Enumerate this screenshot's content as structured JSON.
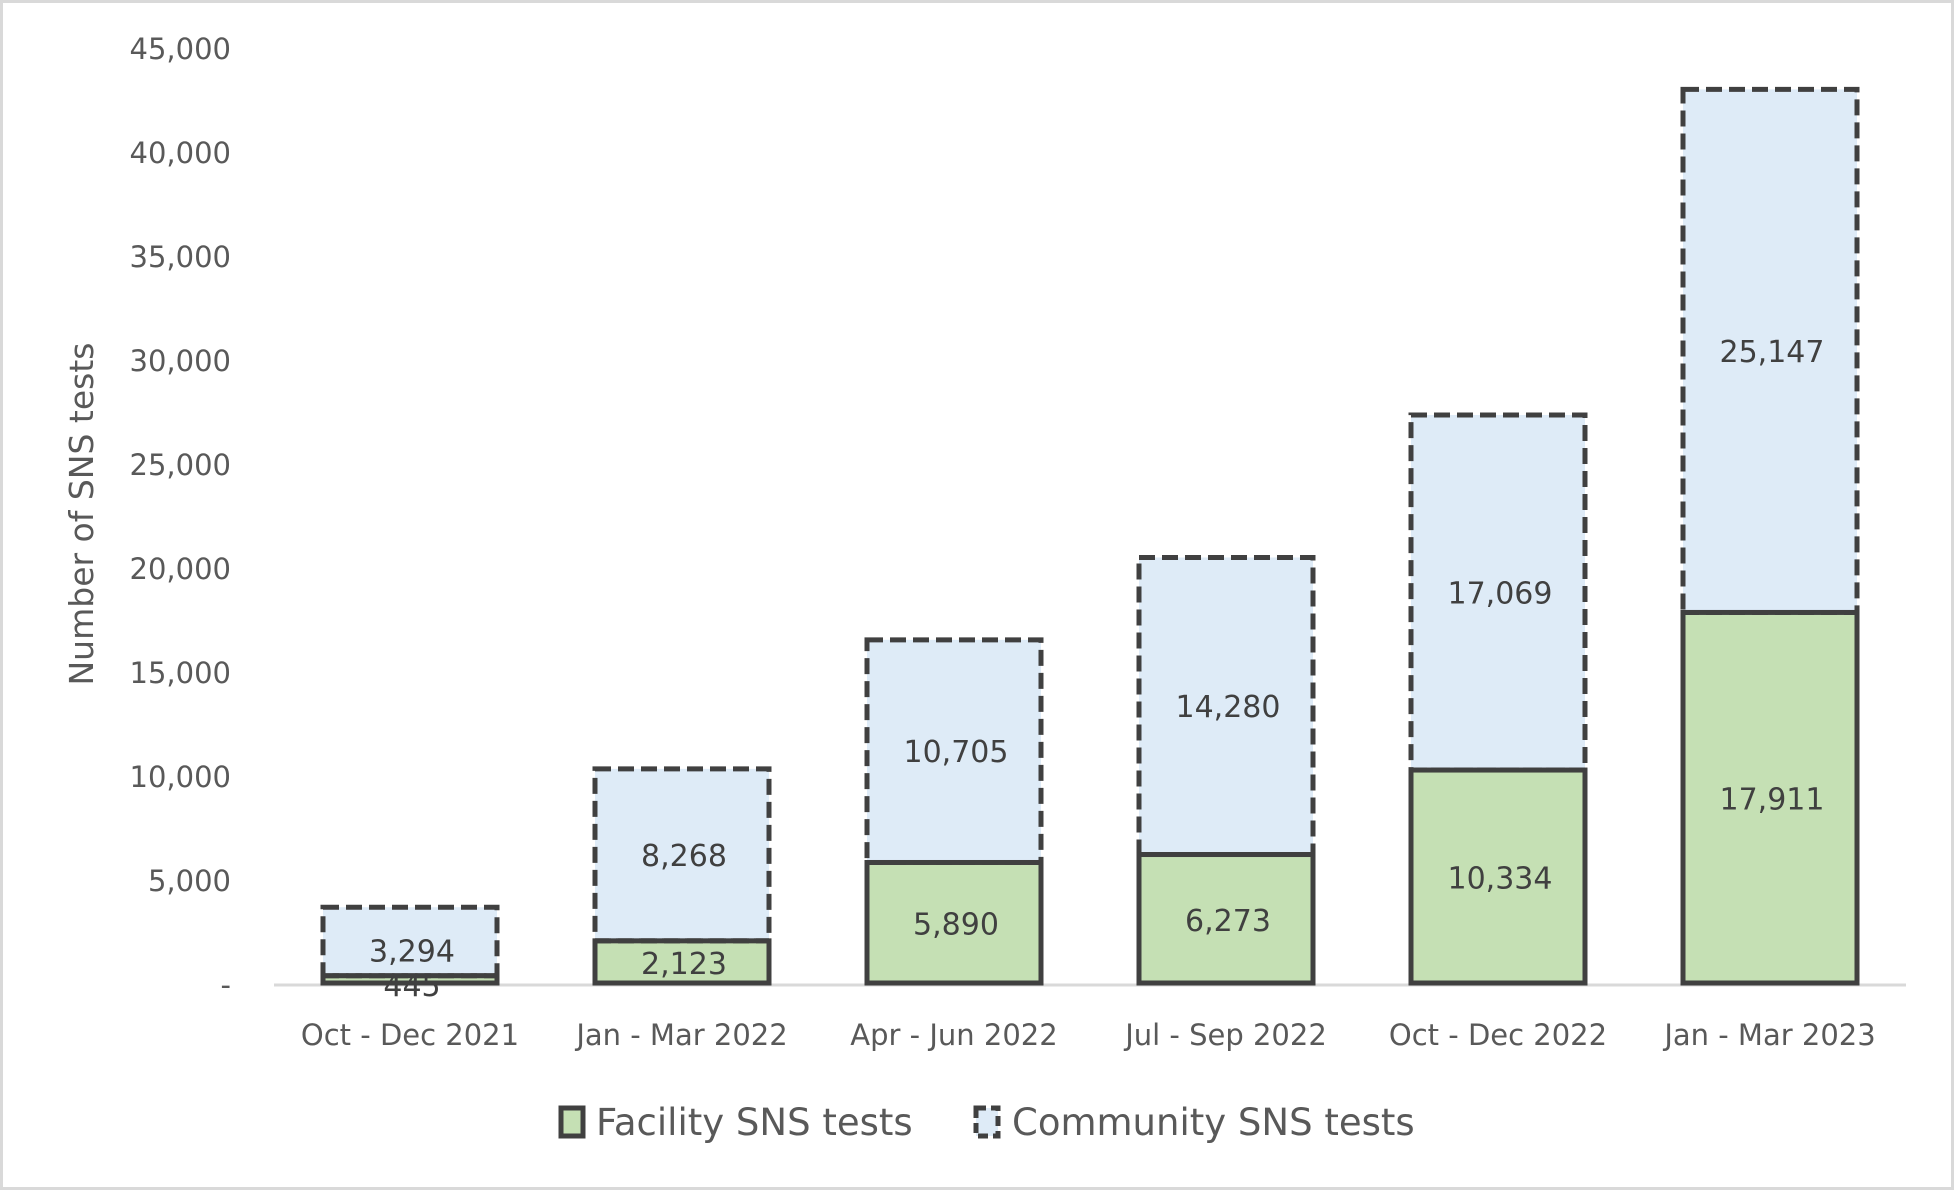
{
  "chart_data": {
    "type": "bar",
    "stacked": true,
    "title": "",
    "xlabel": "",
    "ylabel": "Number of SNS tests",
    "ylim": [
      0,
      45000
    ],
    "ytick_step": 5000,
    "ytick_labels": [
      "-",
      "5,000",
      "10,000",
      "15,000",
      "20,000",
      "25,000",
      "30,000",
      "35,000",
      "40,000",
      "45,000"
    ],
    "grid": false,
    "legend_position": "bottom",
    "categories": [
      "Oct - Dec 2021",
      "Jan - Mar 2022",
      "Apr - Jun 2022",
      "Jul - Sep 2022",
      "Oct - Dec 2022",
      "Jan - Mar 2023"
    ],
    "series": [
      {
        "name": "Facility SNS tests",
        "values": [
          445,
          2123,
          5890,
          6273,
          10334,
          17911
        ],
        "labels": [
          "445",
          "2,123",
          "5,890",
          "6,273",
          "10,334",
          "17,911"
        ],
        "color": "#C5E0B4",
        "border_color": "#404040",
        "border_style": "solid"
      },
      {
        "name": "Community SNS tests",
        "values": [
          3294,
          8268,
          10705,
          14280,
          17069,
          25147
        ],
        "labels": [
          "3,294",
          "8,268",
          "10,705",
          "14,280",
          "17,069",
          "25,147"
        ],
        "color": "#DEEBF7",
        "border_color": "#404040",
        "border_style": "dashed"
      }
    ]
  }
}
